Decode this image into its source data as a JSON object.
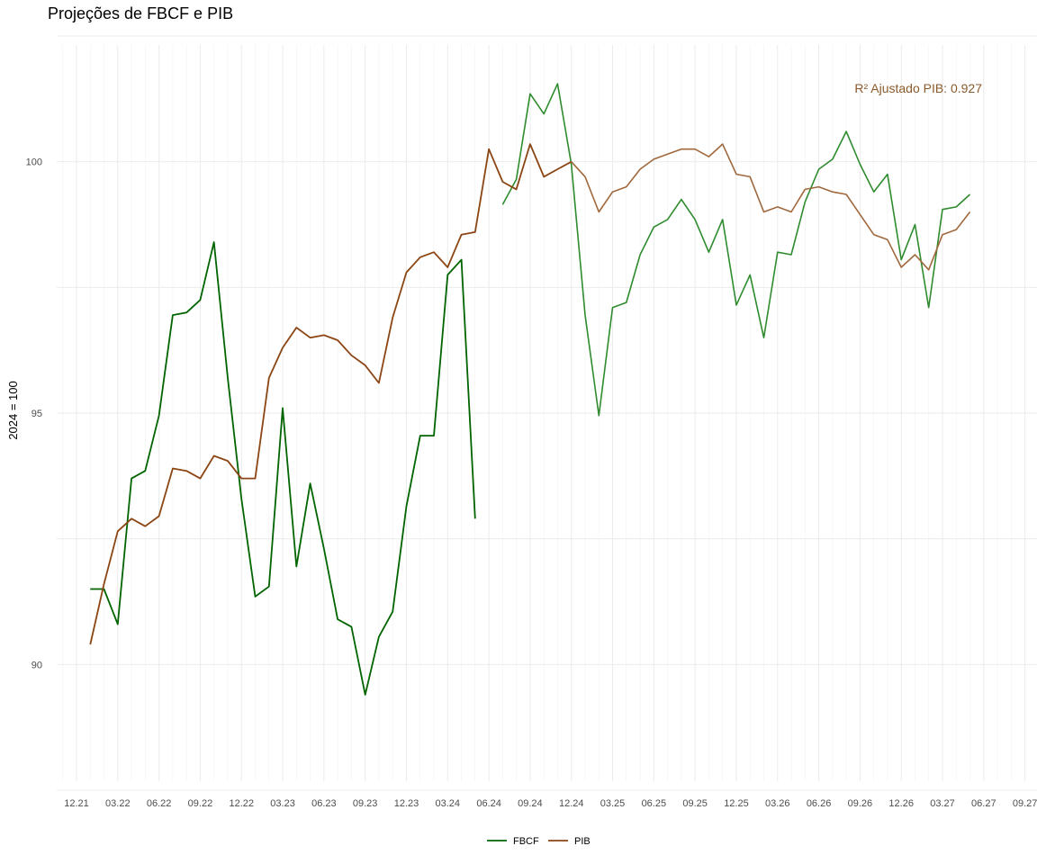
{
  "chart_data": {
    "type": "line",
    "title": "Projeções de FBCF e PIB",
    "xlabel": "",
    "ylabel": "2024 = 100",
    "x_tick_labels": [
      "12.21",
      "03.22",
      "06.22",
      "09.22",
      "12.22",
      "03.23",
      "06.23",
      "09.23",
      "12.23",
      "03.24",
      "06.24",
      "09.24",
      "12.24",
      "03.25",
      "06.25",
      "09.25",
      "12.25",
      "03.26",
      "06.26",
      "09.26",
      "12.26",
      "03.27",
      "06.27",
      "09.27"
    ],
    "y_ticks": [
      90,
      95,
      100
    ],
    "ylim": [
      87.5,
      102.5
    ],
    "grid": true,
    "legend_position": "bottom",
    "annotation": "R² Ajustado PIB: 0.927",
    "colors": {
      "FBCF": "#006400",
      "FBCF_projection": "#2e8b2e",
      "PIB": "#8b4513",
      "PIB_projection": "#a0683c",
      "annotation": "#8b5a2b"
    },
    "series": [
      {
        "name": "FBCF",
        "x": [
          "01.22",
          "02.22",
          "03.22",
          "04.22",
          "05.22",
          "06.22",
          "07.22",
          "08.22",
          "09.22",
          "10.22",
          "11.22",
          "12.22",
          "01.23",
          "02.23",
          "03.23",
          "04.23",
          "05.23",
          "06.23",
          "07.23",
          "08.23",
          "09.23",
          "10.23",
          "11.23",
          "12.23",
          "01.24",
          "02.24",
          "03.24",
          "04.24",
          "05.24",
          "06.24"
        ],
        "values": [
          91.5,
          91.5,
          90.8,
          93.7,
          93.85,
          94.95,
          96.95,
          97.0,
          97.25,
          98.4,
          95.7,
          93.3,
          91.35,
          91.55,
          95.1,
          91.95,
          93.6,
          92.3,
          90.9,
          90.75,
          89.4,
          90.55,
          91.05,
          93.15,
          94.55,
          94.55,
          97.75,
          98.05,
          92.9,
          null
        ]
      },
      {
        "name": "FBCF (projeção)",
        "x": [
          "07.24",
          "08.24",
          "09.24",
          "10.24",
          "11.24",
          "12.24",
          "01.25",
          "02.25",
          "03.25",
          "04.25",
          "05.25",
          "06.25",
          "07.25",
          "08.25",
          "09.25",
          "10.25",
          "11.25",
          "12.25",
          "01.26",
          "02.26",
          "03.26",
          "04.26",
          "05.26",
          "06.26",
          "07.26",
          "08.26",
          "09.26",
          "10.26",
          "11.26",
          "12.26",
          "01.27",
          "02.27",
          "03.27",
          "04.27",
          "05.27"
        ],
        "values": [
          99.15,
          99.65,
          101.35,
          100.95,
          101.55,
          99.95,
          96.95,
          94.95,
          97.1,
          97.2,
          98.15,
          98.7,
          98.85,
          99.25,
          98.85,
          98.2,
          98.85,
          97.15,
          97.75,
          96.5,
          98.2,
          98.15,
          99.2,
          99.85,
          100.05,
          100.6,
          99.95,
          99.4,
          99.75,
          98.05,
          98.75,
          97.1,
          99.05,
          99.1,
          99.35
        ]
      },
      {
        "name": "PIB",
        "x": [
          "01.22",
          "02.22",
          "03.22",
          "04.22",
          "05.22",
          "06.22",
          "07.22",
          "08.22",
          "09.22",
          "10.22",
          "11.22",
          "12.22",
          "01.23",
          "02.23",
          "03.23",
          "04.23",
          "05.23",
          "06.23",
          "07.23",
          "08.23",
          "09.23",
          "10.23",
          "11.23",
          "12.23",
          "01.24",
          "02.24",
          "03.24",
          "04.24",
          "05.24",
          "06.24",
          "07.24",
          "08.24",
          "09.24",
          "10.24",
          "11.24",
          "12.24"
        ],
        "values": [
          90.4,
          91.6,
          92.65,
          92.9,
          92.75,
          92.95,
          93.9,
          93.85,
          93.7,
          94.15,
          94.05,
          93.7,
          93.7,
          95.7,
          96.3,
          96.7,
          96.5,
          96.55,
          96.45,
          96.15,
          95.95,
          95.6,
          96.9,
          97.8,
          98.1,
          98.2,
          97.9,
          98.55,
          98.6,
          100.25,
          99.6,
          99.45,
          100.35,
          99.7,
          99.85,
          100.0
        ]
      },
      {
        "name": "PIB (projeção)",
        "x": [
          "12.24",
          "01.25",
          "02.25",
          "03.25",
          "04.25",
          "05.25",
          "06.25",
          "07.25",
          "08.25",
          "09.25",
          "10.25",
          "11.25",
          "12.25",
          "01.26",
          "02.26",
          "03.26",
          "04.26",
          "05.26",
          "06.26",
          "07.26",
          "08.26",
          "09.26",
          "10.26",
          "11.26",
          "12.26",
          "01.27",
          "02.27",
          "03.27",
          "04.27",
          "05.27"
        ],
        "values": [
          100.0,
          99.7,
          99.0,
          99.4,
          99.5,
          99.85,
          100.05,
          100.15,
          100.25,
          100.25,
          100.1,
          100.35,
          99.75,
          99.7,
          99.0,
          99.1,
          99.0,
          99.45,
          99.5,
          99.4,
          99.35,
          98.95,
          98.55,
          98.45,
          97.9,
          98.15,
          97.85,
          98.55,
          98.65,
          99.0
        ]
      }
    ],
    "legend": [
      {
        "label": "FBCF",
        "color": "#006400"
      },
      {
        "label": "PIB",
        "color": "#8b4513"
      }
    ]
  }
}
